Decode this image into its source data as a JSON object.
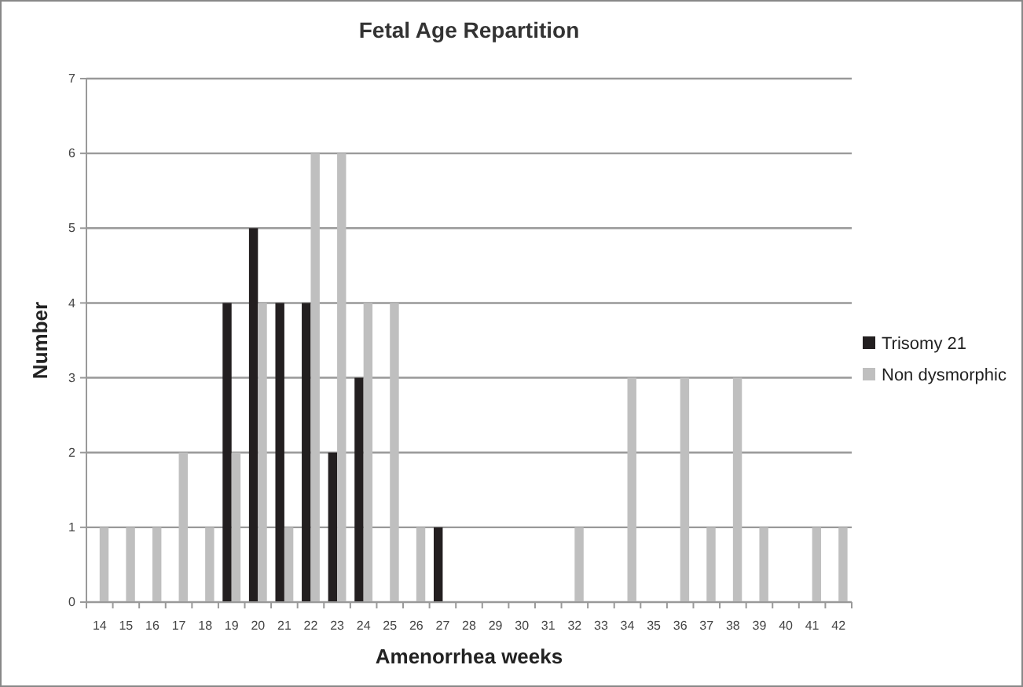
{
  "chart_data": {
    "type": "bar",
    "title": "Fetal Age Repartition",
    "xlabel": "Amenorrhea weeks",
    "ylabel": "Number",
    "categories": [
      "14",
      "15",
      "16",
      "17",
      "18",
      "19",
      "20",
      "21",
      "22",
      "23",
      "24",
      "25",
      "26",
      "27",
      "28",
      "29",
      "30",
      "31",
      "32",
      "33",
      "34",
      "35",
      "36",
      "37",
      "38",
      "39",
      "40",
      "41",
      "42"
    ],
    "series": [
      {
        "name": "Trisomy 21",
        "color": "#231f20",
        "values": [
          0,
          0,
          0,
          0,
          0,
          4,
          5,
          4,
          4,
          2,
          3,
          0,
          0,
          1,
          0,
          0,
          0,
          0,
          0,
          0,
          0,
          0,
          0,
          0,
          0,
          0,
          0,
          0,
          0
        ]
      },
      {
        "name": "Non dysmorphic",
        "color": "#bfbfbf",
        "values": [
          1,
          1,
          1,
          2,
          1,
          2,
          4,
          1,
          6,
          6,
          4,
          4,
          1,
          0,
          0,
          0,
          0,
          0,
          1,
          0,
          3,
          0,
          3,
          1,
          3,
          1,
          0,
          1,
          1
        ]
      }
    ],
    "ylim": [
      0,
      7
    ],
    "yticks": [
      0,
      1,
      2,
      3,
      4,
      5,
      6,
      7
    ],
    "grid": "y",
    "legend": "right"
  }
}
